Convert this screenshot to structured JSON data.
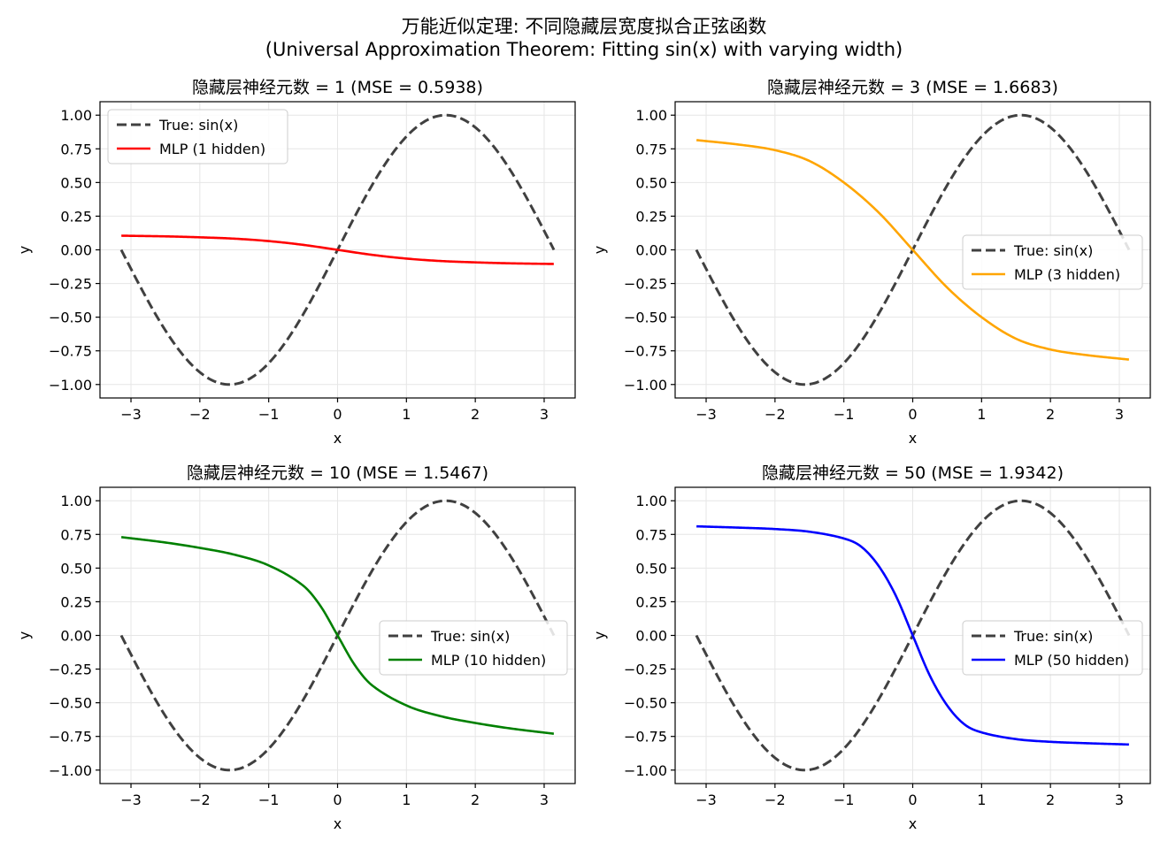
{
  "figure": {
    "title_line1": "万能近似定理: 不同隐藏层宽度拟合正弦函数",
    "title_line2": "(Universal Approximation Theorem: Fitting sin(x) with varying width)"
  },
  "colors": {
    "true_curve": "#404040",
    "mlp_1": "#ff0000",
    "mlp_3": "#ffa500",
    "mlp_10": "#008000",
    "mlp_50": "#0000ff",
    "grid": "#e6e6e6"
  },
  "chart_data": [
    {
      "type": "line",
      "title": "隐藏层神经元数 = 1  (MSE = 0.5938)",
      "xlabel": "x",
      "ylabel": "y",
      "xlim": [
        -3.45,
        3.45
      ],
      "ylim": [
        -1.1,
        1.1
      ],
      "xticks": [
        -3,
        -2,
        -1,
        0,
        1,
        2,
        3
      ],
      "yticks": [
        -1.0,
        -0.75,
        -0.5,
        -0.25,
        0.0,
        0.25,
        0.5,
        0.75,
        1.0
      ],
      "grid": true,
      "legend_position": "upper left",
      "series": [
        {
          "name": "True: sin(x)",
          "function": "sin",
          "x_range": [
            -3.1416,
            3.1416
          ],
          "style": "dashed",
          "color": "#404040"
        },
        {
          "name": "MLP (1 hidden)",
          "color": "#ff0000",
          "style": "solid",
          "x": [
            -3.14,
            -2.5,
            -2.0,
            -1.5,
            -1.0,
            -0.5,
            0.0,
            0.5,
            1.0,
            1.5,
            2.0,
            2.5,
            3.14
          ],
          "y": [
            0.105,
            0.1,
            0.093,
            0.083,
            0.065,
            0.037,
            0.0,
            -0.037,
            -0.065,
            -0.083,
            -0.093,
            -0.1,
            -0.105
          ]
        }
      ]
    },
    {
      "type": "line",
      "title": "隐藏层神经元数 = 3  (MSE = 1.6683)",
      "xlabel": "x",
      "ylabel": "y",
      "xlim": [
        -3.45,
        3.45
      ],
      "ylim": [
        -1.1,
        1.1
      ],
      "xticks": [
        -3,
        -2,
        -1,
        0,
        1,
        2,
        3
      ],
      "yticks": [
        -1.0,
        -0.75,
        -0.5,
        -0.25,
        0.0,
        0.25,
        0.5,
        0.75,
        1.0
      ],
      "grid": true,
      "legend_position": "center right",
      "series": [
        {
          "name": "True: sin(x)",
          "function": "sin",
          "x_range": [
            -3.1416,
            3.1416
          ],
          "style": "dashed",
          "color": "#404040"
        },
        {
          "name": "MLP (3 hidden)",
          "color": "#ffa500",
          "style": "solid",
          "x": [
            -3.14,
            -2.5,
            -2.0,
            -1.5,
            -1.0,
            -0.5,
            0.0,
            0.5,
            1.0,
            1.5,
            2.0,
            2.5,
            3.14
          ],
          "y": [
            0.815,
            0.78,
            0.74,
            0.66,
            0.5,
            0.28,
            0.0,
            -0.28,
            -0.5,
            -0.66,
            -0.74,
            -0.78,
            -0.815
          ]
        }
      ]
    },
    {
      "type": "line",
      "title": "隐藏层神经元数 = 10  (MSE = 1.5467)",
      "xlabel": "x",
      "ylabel": "y",
      "xlim": [
        -3.45,
        3.45
      ],
      "ylim": [
        -1.1,
        1.1
      ],
      "xticks": [
        -3,
        -2,
        -1,
        0,
        1,
        2,
        3
      ],
      "yticks": [
        -1.0,
        -0.75,
        -0.5,
        -0.25,
        0.0,
        0.25,
        0.5,
        0.75,
        1.0
      ],
      "grid": true,
      "legend_position": "center right",
      "series": [
        {
          "name": "True: sin(x)",
          "function": "sin",
          "x_range": [
            -3.1416,
            3.1416
          ],
          "style": "dashed",
          "color": "#404040"
        },
        {
          "name": "MLP (10 hidden)",
          "color": "#008000",
          "style": "solid",
          "x": [
            -3.14,
            -2.5,
            -2.0,
            -1.5,
            -1.0,
            -0.5,
            -0.25,
            0.0,
            0.25,
            0.5,
            1.0,
            1.5,
            2.0,
            2.5,
            3.14
          ],
          "y": [
            0.73,
            0.69,
            0.65,
            0.6,
            0.52,
            0.37,
            0.22,
            0.0,
            -0.22,
            -0.37,
            -0.52,
            -0.6,
            -0.65,
            -0.69,
            -0.73
          ]
        }
      ]
    },
    {
      "type": "line",
      "title": "隐藏层神经元数 = 50  (MSE = 1.9342)",
      "xlabel": "x",
      "ylabel": "y",
      "xlim": [
        -3.45,
        3.45
      ],
      "ylim": [
        -1.1,
        1.1
      ],
      "xticks": [
        -3,
        -2,
        -1,
        0,
        1,
        2,
        3
      ],
      "yticks": [
        -1.0,
        -0.75,
        -0.5,
        -0.25,
        0.0,
        0.25,
        0.5,
        0.75,
        1.0
      ],
      "grid": true,
      "legend_position": "center right",
      "series": [
        {
          "name": "True: sin(x)",
          "function": "sin",
          "x_range": [
            -3.1416,
            3.1416
          ],
          "style": "dashed",
          "color": "#404040"
        },
        {
          "name": "MLP (50 hidden)",
          "color": "#0000ff",
          "style": "solid",
          "x": [
            -3.14,
            -2.5,
            -2.0,
            -1.5,
            -1.0,
            -0.75,
            -0.5,
            -0.25,
            0.0,
            0.25,
            0.5,
            0.75,
            1.0,
            1.5,
            2.0,
            2.5,
            3.14
          ],
          "y": [
            0.81,
            0.8,
            0.79,
            0.77,
            0.72,
            0.66,
            0.52,
            0.3,
            0.0,
            -0.3,
            -0.52,
            -0.66,
            -0.72,
            -0.77,
            -0.79,
            -0.8,
            -0.81
          ]
        }
      ]
    }
  ]
}
